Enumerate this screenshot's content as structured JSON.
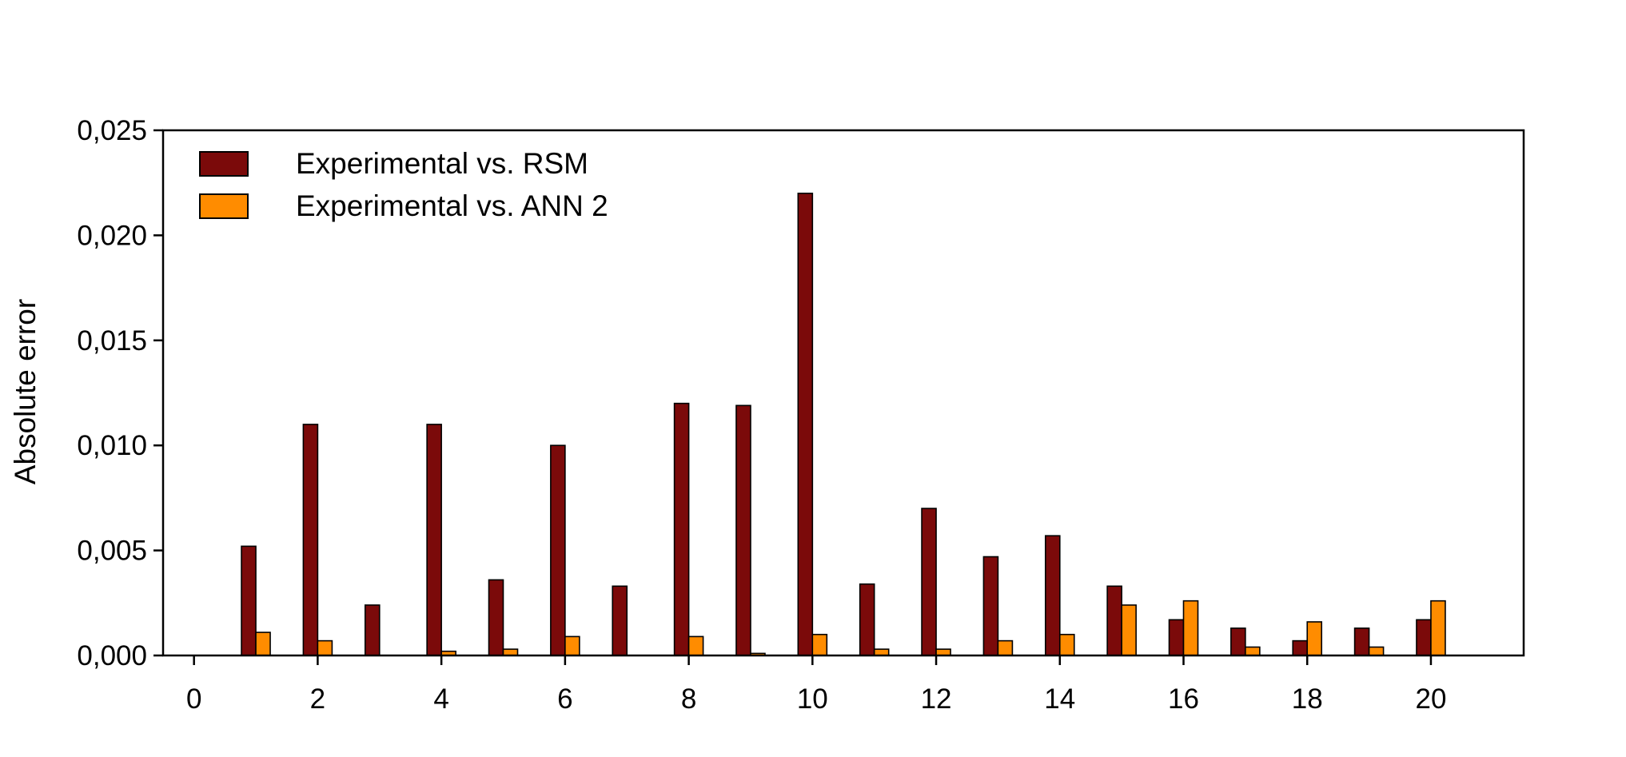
{
  "chart_data": {
    "type": "bar",
    "title": "",
    "xlabel": "",
    "ylabel": "Absolute error",
    "xlim": [
      -0.5,
      21.5
    ],
    "ylim": [
      0,
      0.025
    ],
    "grid": false,
    "legend_position": "top-left",
    "x_ticks": [
      0,
      2,
      4,
      6,
      8,
      10,
      12,
      14,
      16,
      18,
      20
    ],
    "x_tick_labels": [
      "0",
      "2",
      "4",
      "6",
      "8",
      "10",
      "12",
      "14",
      "16",
      "18",
      "20"
    ],
    "y_ticks": [
      0,
      0.005,
      0.01,
      0.015,
      0.02,
      0.025
    ],
    "y_tick_labels": [
      "0,000",
      "0,005",
      "0,010",
      "0,015",
      "0,020",
      "0,025"
    ],
    "x": [
      1,
      2,
      3,
      4,
      5,
      6,
      7,
      8,
      9,
      10,
      11,
      12,
      13,
      14,
      15,
      16,
      17,
      18,
      19,
      20
    ],
    "series": [
      {
        "name": "Experimental vs. RSM",
        "color": "#7b0a0a",
        "values": [
          0.0052,
          0.011,
          0.0024,
          0.011,
          0.0036,
          0.01,
          0.0033,
          0.012,
          0.0119,
          0.022,
          0.0034,
          0.007,
          0.0047,
          0.0057,
          0.0033,
          0.0017,
          0.0013,
          0.0007,
          0.0013,
          0.0017
        ]
      },
      {
        "name": "Experimental vs. ANN 2",
        "color": "#ff8c00",
        "values": [
          0.0011,
          0.0007,
          0.0,
          0.0002,
          0.0003,
          0.0009,
          0.0,
          0.0009,
          0.0001,
          0.001,
          0.0003,
          0.0003,
          0.0007,
          0.001,
          0.0024,
          0.0026,
          0.0004,
          0.0016,
          0.0004,
          0.0026
        ]
      }
    ]
  }
}
